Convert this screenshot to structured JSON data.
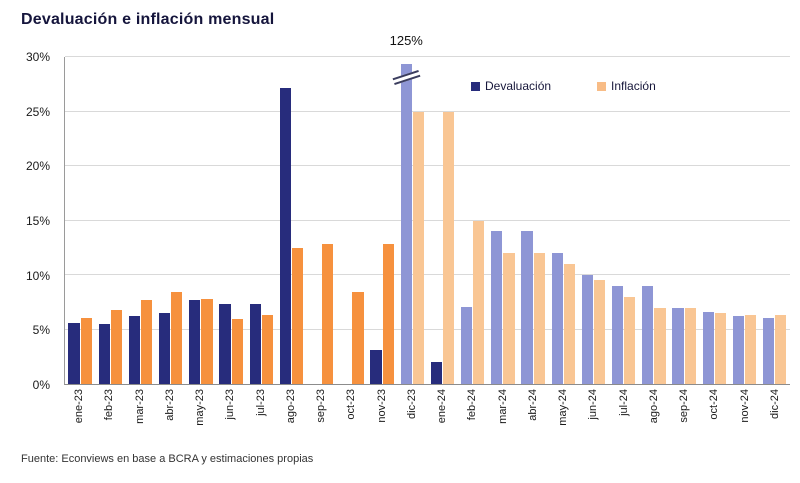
{
  "source": "Fuente: Econviews en base a BCRA y estimaciones propias",
  "chart_data": {
    "type": "bar",
    "title": "Devaluación e inflación mensual",
    "categories": [
      "ene-23",
      "feb-23",
      "mar-23",
      "abr-23",
      "may-23",
      "jun-23",
      "jul-23",
      "ago-23",
      "sep-23",
      "oct-23",
      "nov-23",
      "dic-23",
      "ene-24",
      "feb-24",
      "mar-24",
      "abr-24",
      "may-24",
      "jun-24",
      "jul-24",
      "ago-24",
      "sep-24",
      "oct-24",
      "nov-24",
      "dic-24"
    ],
    "series": [
      {
        "name": "Devaluación",
        "color": "#272c7c",
        "color_light": "#8e96d5",
        "legend_color": "#272c7c",
        "values": [
          5.6,
          5.5,
          6.2,
          6.5,
          7.7,
          7.3,
          7.3,
          27.2,
          0,
          0,
          3.1,
          125,
          2.0,
          7.1,
          14.0,
          14.0,
          12.0,
          10.0,
          9.0,
          9.0,
          7.0,
          6.6,
          6.2,
          6.1
        ],
        "styles": [
          "solid",
          "solid",
          "solid",
          "solid",
          "solid",
          "solid",
          "solid",
          "solid",
          "solid",
          "solid",
          "solid",
          "light",
          "solid",
          "light",
          "light",
          "light",
          "light",
          "light",
          "light",
          "light",
          "light",
          "light",
          "light",
          "light"
        ]
      },
      {
        "name": "Inflación",
        "color": "#f6913e",
        "color_light": "#f9c694",
        "legend_color": "#f8bc86",
        "values": [
          6.1,
          6.8,
          7.7,
          8.4,
          7.8,
          6.0,
          6.3,
          12.5,
          12.8,
          8.4,
          12.8,
          25.0,
          25.0,
          15.0,
          12.0,
          12.0,
          11.0,
          9.5,
          8.0,
          7.0,
          7.0,
          6.5,
          6.3,
          6.3
        ],
        "styles": [
          "solid",
          "solid",
          "solid",
          "solid",
          "solid",
          "solid",
          "solid",
          "solid",
          "solid",
          "solid",
          "solid",
          "light",
          "light",
          "light",
          "light",
          "light",
          "light",
          "light",
          "light",
          "light",
          "light",
          "light",
          "light",
          "light"
        ]
      }
    ],
    "ylim": [
      0,
      30
    ],
    "yticks": [
      "0%",
      "5%",
      "10%",
      "15%",
      "20%",
      "25%",
      "30%"
    ],
    "grid": true,
    "legend_position": "top-right-inside",
    "annotation": {
      "text": "125%",
      "category": "dic-23",
      "series": "Devaluación",
      "plotted_height": 29.4,
      "break_marker": true
    }
  }
}
